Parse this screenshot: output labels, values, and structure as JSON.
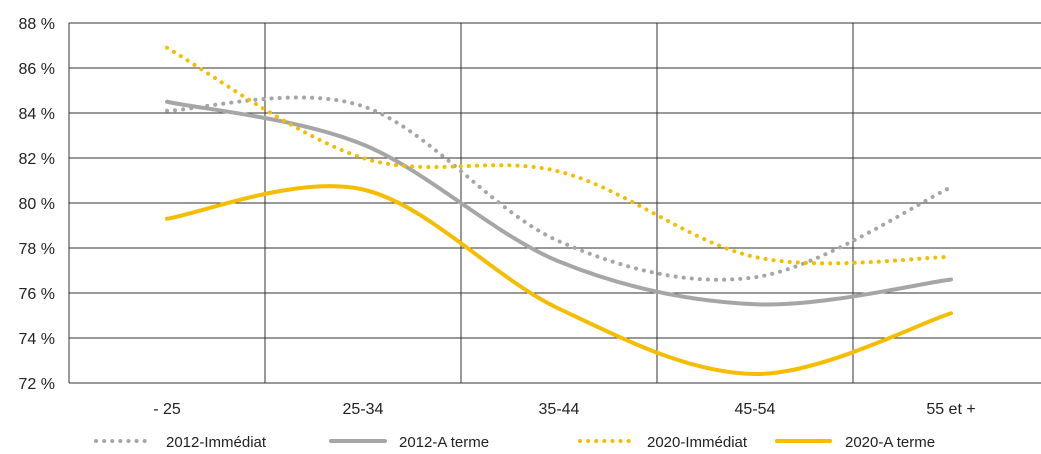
{
  "chart_data": {
    "type": "line",
    "categories": [
      "- 25",
      "25-34",
      "35-44",
      "45-54",
      "55 et +"
    ],
    "ylim": [
      72,
      88
    ],
    "yticks": [
      {
        "value": 72,
        "label": "72 %"
      },
      {
        "value": 74,
        "label": "74 %"
      },
      {
        "value": 76,
        "label": "76 %"
      },
      {
        "value": 78,
        "label": "78 %"
      },
      {
        "value": 80,
        "label": "80 %"
      },
      {
        "value": 82,
        "label": "82 %"
      },
      {
        "value": 84,
        "label": "84 %"
      },
      {
        "value": 86,
        "label": "86 %"
      },
      {
        "value": 88,
        "label": "88 %"
      }
    ],
    "grid": true,
    "legend_position": "bottom",
    "series": [
      {
        "name": "2012-Immédiat",
        "values": [
          84.1,
          84.3,
          78.3,
          76.7,
          80.7
        ],
        "color": "#a6a6a6",
        "style": "dotted"
      },
      {
        "name": "2012-A terme",
        "values": [
          84.5,
          82.6,
          77.4,
          75.5,
          76.6
        ],
        "color": "#a6a6a6",
        "style": "solid"
      },
      {
        "name": "2020-Immédiat",
        "values": [
          86.9,
          82.0,
          81.4,
          77.6,
          77.6
        ],
        "color": "#f5bd00",
        "style": "dotted"
      },
      {
        "name": "2020-A terme",
        "values": [
          79.3,
          80.6,
          75.3,
          72.4,
          75.1
        ],
        "color": "#f5bd00",
        "style": "solid"
      }
    ]
  }
}
